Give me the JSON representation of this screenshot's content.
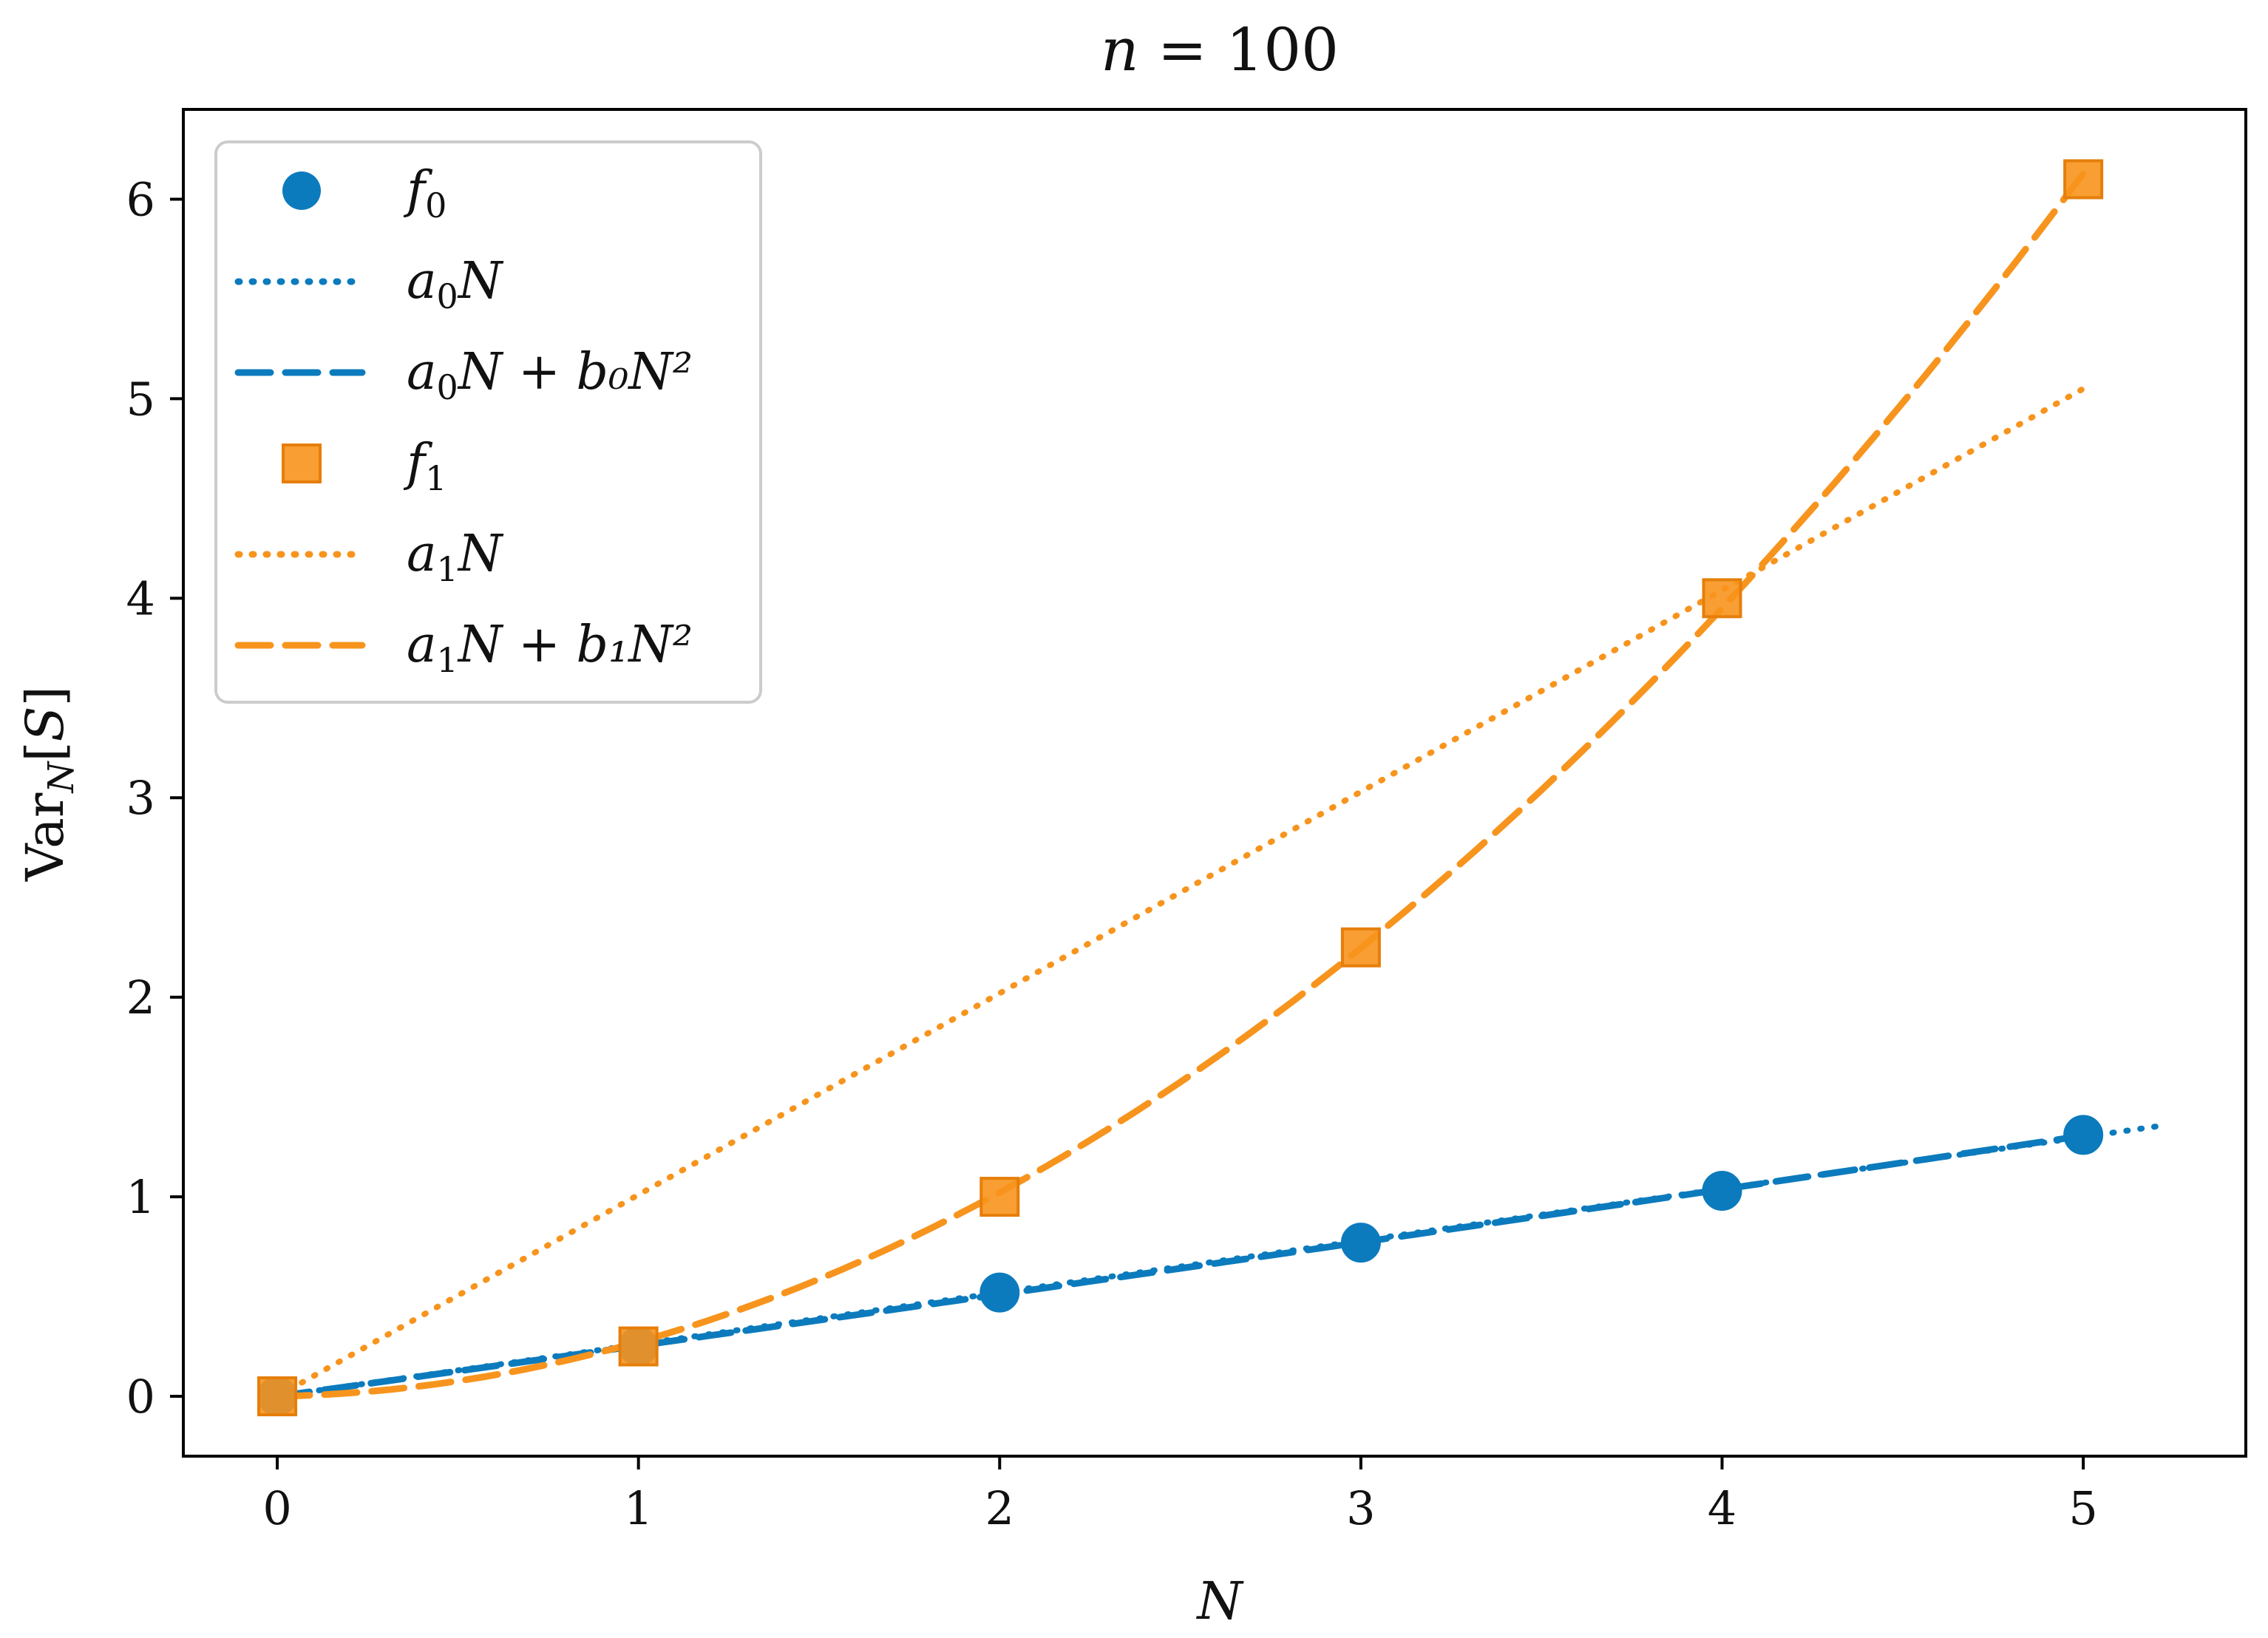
{
  "chart_data": {
    "type": "line",
    "title": "n = 100",
    "xlabel": "N",
    "ylabel": "Var_N[S]",
    "xlim": [
      -0.26,
      5.45
    ],
    "ylim": [
      -0.3,
      6.45
    ],
    "xticks": [
      0,
      1,
      2,
      3,
      4,
      5
    ],
    "yticks": [
      0,
      1,
      2,
      3,
      4,
      5,
      6
    ],
    "xtick_labels": [
      "0",
      "1",
      "2",
      "3",
      "4",
      "5"
    ],
    "ytick_labels": [
      "0",
      "1",
      "2",
      "3",
      "4",
      "5",
      "6"
    ],
    "grid": false,
    "legend_position": "top-left",
    "colors": {
      "blue": "#0c7bbd",
      "orange": "#f7941d"
    },
    "series": [
      {
        "name": "f0",
        "kind": "markers",
        "marker": "circle",
        "color": "#0c7bbd",
        "x": [
          0,
          1,
          2,
          3,
          4,
          5
        ],
        "y": [
          0.0,
          0.25,
          0.52,
          0.77,
          1.03,
          1.31
        ]
      },
      {
        "name": "a0N",
        "kind": "line",
        "style": "dotted",
        "color": "#0c7bbd",
        "x": [
          0,
          5.2
        ],
        "y": [
          0.0,
          1.352
        ]
      },
      {
        "name": "a0N + b0N²",
        "kind": "line",
        "style": "dashed",
        "color": "#0c7bbd",
        "x": [
          0,
          5.0
        ],
        "y": [
          0.0,
          1.3
        ]
      },
      {
        "name": "f1",
        "kind": "markers",
        "marker": "square",
        "color": "#f7941d",
        "x": [
          0,
          1,
          2,
          3,
          4,
          5
        ],
        "y": [
          0.0,
          0.25,
          1.0,
          2.25,
          4.0,
          6.1
        ]
      },
      {
        "name": "a1N",
        "kind": "line",
        "style": "dotted",
        "color": "#f7941d",
        "x": [
          0,
          5.0
        ],
        "y": [
          0.0,
          5.05
        ]
      },
      {
        "name": "a1N + b1N²",
        "kind": "line",
        "style": "dashed",
        "color": "#f7941d",
        "x": [
          0,
          5.0
        ],
        "y": [
          0.0,
          6.1
        ]
      }
    ]
  },
  "legend": {
    "items": [
      {
        "sym": "f",
        "sub": "0",
        "rest": ""
      },
      {
        "sym": "a",
        "sub": "0",
        "rest": "N"
      },
      {
        "sym": "a",
        "sub": "0",
        "rest": "N + b₀N²"
      },
      {
        "sym": "f",
        "sub": "1",
        "rest": ""
      },
      {
        "sym": "a",
        "sub": "1",
        "rest": "N"
      },
      {
        "sym": "a",
        "sub": "1",
        "rest": "N + b₁N²"
      }
    ]
  }
}
